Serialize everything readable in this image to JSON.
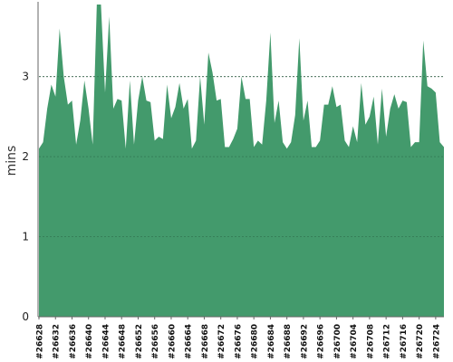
{
  "chart_data": {
    "type": "area",
    "ylabel": "mins",
    "xlabel": "",
    "ylim": [
      0,
      3.9
    ],
    "yticks": [
      0,
      1,
      2,
      3
    ],
    "grid": true,
    "colors": {
      "fill": "#439a6c",
      "line": "#2f7d52",
      "grid": "#8a8a8a",
      "axis": "#666666"
    },
    "x": [
      "#26628",
      "#26629",
      "#26630",
      "#26631",
      "#26632",
      "#26633",
      "#26634",
      "#26635",
      "#26636",
      "#26637",
      "#26638",
      "#26639",
      "#26640",
      "#26641",
      "#26642",
      "#26643",
      "#26644",
      "#26645",
      "#26646",
      "#26647",
      "#26648",
      "#26649",
      "#26650",
      "#26651",
      "#26652",
      "#26653",
      "#26654",
      "#26655",
      "#26656",
      "#26657",
      "#26658",
      "#26659",
      "#26660",
      "#26661",
      "#26662",
      "#26663",
      "#26664",
      "#26665",
      "#26666",
      "#26667",
      "#26668",
      "#26669",
      "#26670",
      "#26671",
      "#26672",
      "#26673",
      "#26674",
      "#26675",
      "#26676",
      "#26677",
      "#26678",
      "#26679",
      "#26680",
      "#26681",
      "#26682",
      "#26683",
      "#26684",
      "#26685",
      "#26686",
      "#26687",
      "#26688",
      "#26689",
      "#26690",
      "#26691",
      "#26692",
      "#26693",
      "#26694",
      "#26695",
      "#26696",
      "#26697",
      "#26698",
      "#26699",
      "#26700",
      "#26701",
      "#26702",
      "#26703",
      "#26704",
      "#26705",
      "#26706",
      "#26707",
      "#26708",
      "#26709",
      "#26710",
      "#26711",
      "#26712",
      "#26713",
      "#26714",
      "#26715",
      "#26716",
      "#26717",
      "#26718",
      "#26719",
      "#26720",
      "#26721",
      "#26722",
      "#26723",
      "#26724",
      "#26725",
      "#26726"
    ],
    "xticks": [
      "#26628",
      "#26632",
      "#26636",
      "#26640",
      "#26644",
      "#26648",
      "#26652",
      "#26656",
      "#26660",
      "#26664",
      "#26668",
      "#26672",
      "#26676",
      "#26680",
      "#26684",
      "#26688",
      "#26692",
      "#26696",
      "#26700",
      "#26704",
      "#26708",
      "#26712",
      "#26716",
      "#26720",
      "#26724"
    ],
    "series": [
      {
        "values": [
          2.1,
          2.18,
          2.6,
          2.9,
          2.75,
          3.6,
          3.0,
          2.65,
          2.7,
          2.15,
          2.45,
          2.95,
          2.6,
          2.15,
          3.9,
          3.9,
          2.8,
          3.75,
          2.6,
          2.72,
          2.7,
          2.1,
          2.95,
          2.15,
          2.7,
          3.0,
          2.7,
          2.68,
          2.2,
          2.25,
          2.22,
          2.9,
          2.48,
          2.62,
          2.92,
          2.6,
          2.72,
          2.1,
          2.2,
          3.0,
          2.4,
          3.3,
          3.05,
          2.7,
          2.72,
          2.12,
          2.12,
          2.22,
          2.35,
          3.0,
          2.72,
          2.72,
          2.12,
          2.2,
          2.15,
          2.7,
          3.55,
          2.42,
          2.7,
          2.18,
          2.1,
          2.18,
          2.52,
          3.48,
          2.45,
          2.7,
          2.12,
          2.12,
          2.2,
          2.65,
          2.65,
          2.88,
          2.62,
          2.65,
          2.2,
          2.12,
          2.38,
          2.18,
          2.92,
          2.4,
          2.5,
          2.75,
          2.15,
          2.85,
          2.25,
          2.6,
          2.78,
          2.6,
          2.7,
          2.68,
          2.12,
          2.18,
          2.18,
          3.45,
          2.88,
          2.85,
          2.8,
          2.18,
          2.12
        ]
      }
    ]
  }
}
